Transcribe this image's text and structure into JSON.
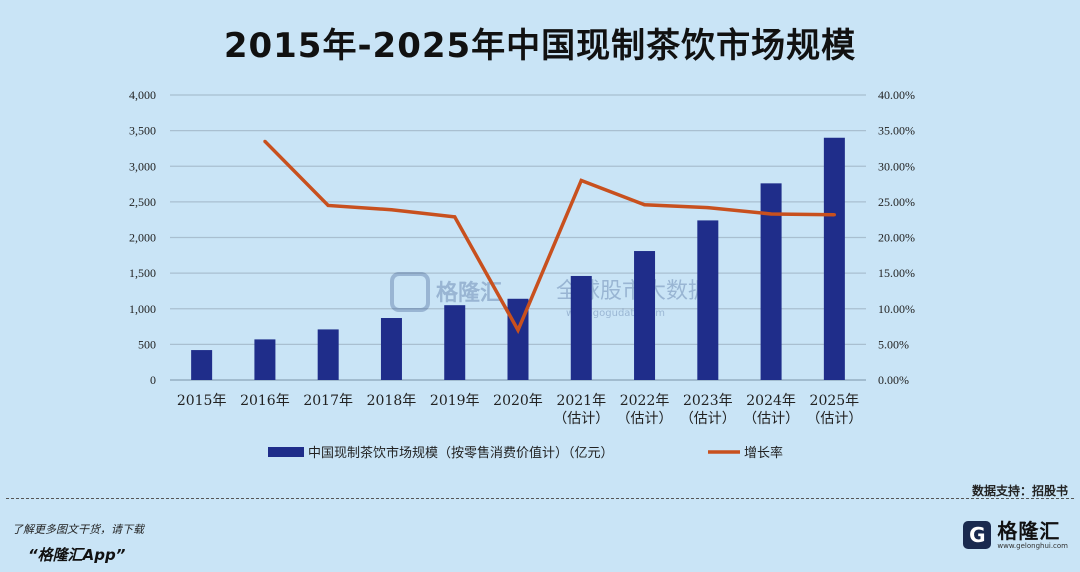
{
  "title": "2015年-2025年中国现制茶饮市场规模",
  "chart_data": {
    "type": "bar+line",
    "categories": [
      [
        "2015年"
      ],
      [
        "2016年"
      ],
      [
        "2017年"
      ],
      [
        "2018年"
      ],
      [
        "2019年"
      ],
      [
        "2020年"
      ],
      [
        "2021年",
        "（估计）"
      ],
      [
        "2022年",
        "（估计）"
      ],
      [
        "2023年",
        "（估计）"
      ],
      [
        "2024年",
        "（估计）"
      ],
      [
        "2025年",
        "（估计）"
      ]
    ],
    "series": [
      {
        "name": "中国现制茶饮市场规模（按零售消费价值计）（亿元）",
        "type": "bar",
        "axis": "left",
        "color": "#1f2d8a",
        "values": [
          420,
          570,
          710,
          870,
          1050,
          1140,
          1460,
          1810,
          2240,
          2760,
          3400
        ]
      },
      {
        "name": "增长率",
        "type": "line",
        "axis": "right",
        "color": "#c8501e",
        "values": [
          null,
          33.5,
          24.5,
          23.9,
          22.9,
          7.0,
          28.0,
          24.6,
          24.2,
          23.3,
          23.2
        ]
      }
    ],
    "y_left": {
      "min": 0,
      "max": 4000,
      "ticks": [
        "0",
        "500",
        "1,000",
        "1,500",
        "2,000",
        "2,500",
        "3,000",
        "3,500",
        "4,000"
      ]
    },
    "y_right": {
      "min": 0,
      "max": 40,
      "ticks": [
        "0.00%",
        "5.00%",
        "10.00%",
        "15.00%",
        "20.00%",
        "25.00%",
        "30.00%",
        "35.00%",
        "40.00%"
      ]
    },
    "grid": true,
    "legend": "bottom"
  },
  "watermark": {
    "logo_text": "格隆汇",
    "text": "全球股市大数据",
    "url": "www.gogudata.com"
  },
  "source": "数据支持：招股书",
  "footer": {
    "promo_line1": "了解更多图文干货，请下载",
    "promo_line2": "“格隆汇App”",
    "brand_name": "格隆汇",
    "brand_url": "www.gelonghui.com",
    "logo_glyph": "G"
  }
}
